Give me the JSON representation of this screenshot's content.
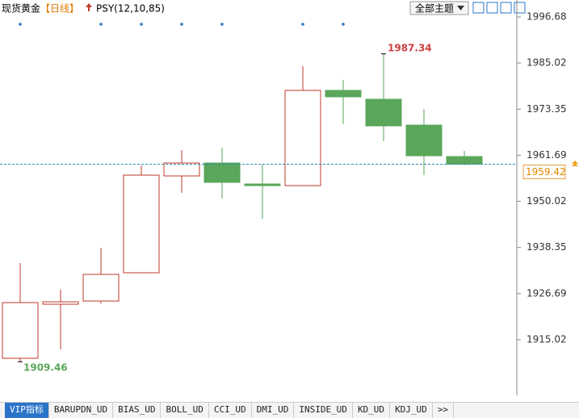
{
  "header": {
    "title": "现货黄金",
    "period": "【日线】",
    "indicator": "PSY(12,10,85)",
    "theme_button": "全部主题"
  },
  "chart_data": {
    "type": "candlestick",
    "up_color": "#c0392b",
    "down_color": "#5aa65a",
    "open": [
      1910.32,
      1924.0,
      1924.81,
      1931.96,
      1956.46,
      1959.73,
      1954.42,
      1954.01,
      1978.1,
      1975.86,
      1969.32,
      1961.36
    ],
    "high": [
      1934.41,
      1927.67,
      1938.29,
      1959.11,
      1963.0,
      1963.61,
      1959.32,
      1984.23,
      1980.75,
      1987.34,
      1973.41,
      1962.79
    ],
    "low": [
      1909.46,
      1912.56,
      1924.2,
      1931.96,
      1952.17,
      1950.74,
      1945.64,
      1954.01,
      1969.53,
      1965.24,
      1956.66,
      1959.2
    ],
    "close": [
      1924.41,
      1924.61,
      1931.55,
      1956.66,
      1959.73,
      1954.83,
      1954.01,
      1978.1,
      1976.47,
      1969.12,
      1961.56,
      1959.42
    ],
    "ylim": [
      1900.93,
      2000.97
    ],
    "yticks": [
      1996.68,
      1985.02,
      1973.35,
      1961.69,
      1950.02,
      1938.35,
      1926.69,
      1915.02
    ]
  },
  "tabs": [
    "VIP指标",
    "BARUPDN_UD",
    "BIAS_UD",
    "BOLL_UD",
    "CCI_UD",
    "DMI_UD",
    "INSIDE_UD",
    "KD_UD",
    "KDJ_UD",
    ">>"
  ]
}
